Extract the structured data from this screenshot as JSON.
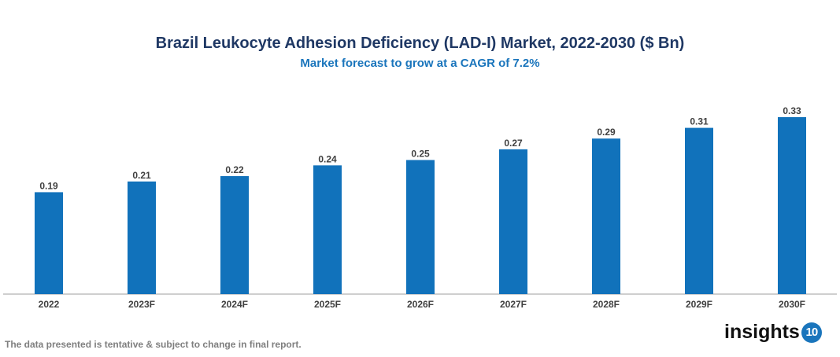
{
  "chart_data": {
    "type": "bar",
    "title": "Brazil Leukocyte Adhesion Deficiency (LAD-I) Market, 2022-2030 ($ Bn)",
    "subtitle": "Market forecast to grow at a CAGR of 7.2%",
    "categories": [
      "2022",
      "2023F",
      "2024F",
      "2025F",
      "2026F",
      "2027F",
      "2028F",
      "2029F",
      "2030F"
    ],
    "values": [
      0.19,
      0.21,
      0.22,
      0.24,
      0.25,
      0.27,
      0.29,
      0.31,
      0.33
    ],
    "data_labels": [
      "0.19",
      "0.21",
      "0.22",
      "0.24",
      "0.25",
      "0.27",
      "0.29",
      "0.31",
      "0.33"
    ],
    "xlabel": "",
    "ylabel": "",
    "ylim": [
      0,
      0.35
    ],
    "grid": false,
    "legend": "none",
    "bar_color": "#1172bb"
  },
  "footnote": "The data presented is tentative & subject to change in final report.",
  "logo": {
    "text": "insights",
    "badge": "10"
  }
}
